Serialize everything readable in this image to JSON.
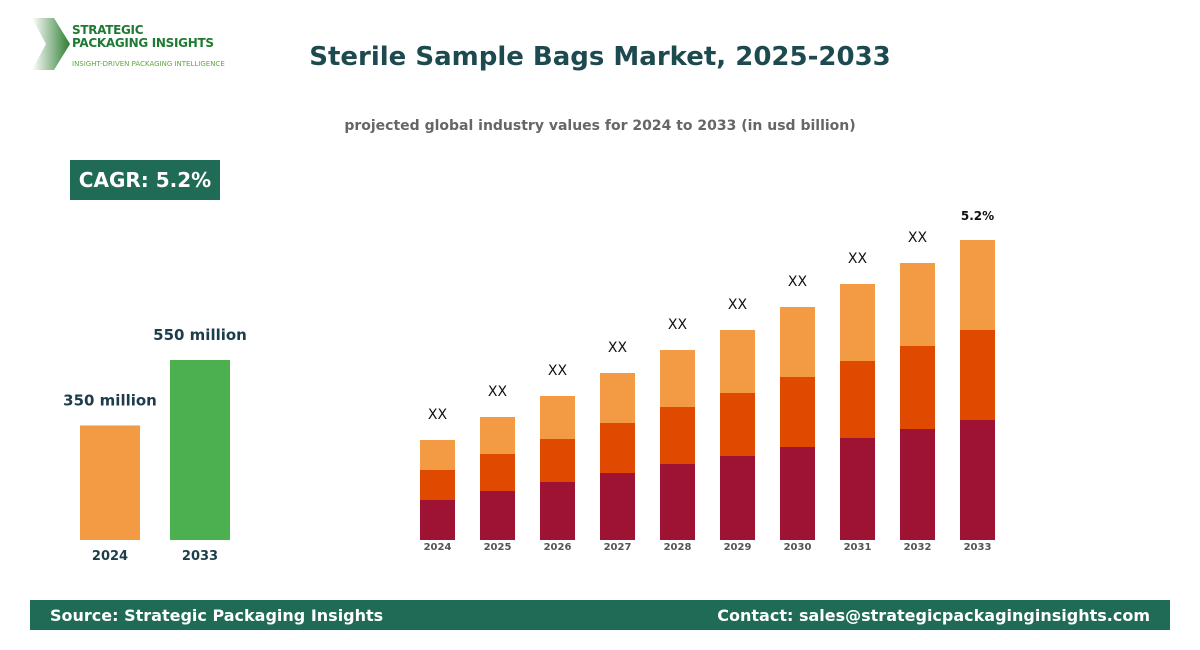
{
  "logo": {
    "line1": "STRATEGIC",
    "line2": "PACKAGING INSIGHTS",
    "tagline": "INSIGHT-DRIVEN PACKAGING INTELLIGENCE"
  },
  "header": {
    "title": "Sterile Sample Bags Market, 2025-2033",
    "subtitle": "projected global industry values for 2024 to 2033 (in usd billion)"
  },
  "cagr_badge": "CAGR: 5.2%",
  "footer": {
    "source": "Source: Strategic Packaging Insights",
    "contact": "Contact: sales@strategicpackaginginsights.com"
  },
  "chart_data": [
    {
      "type": "bar",
      "categories": [
        "2024",
        "2033"
      ],
      "values": [
        350,
        550
      ],
      "data_labels": [
        "350 million",
        "550 million"
      ],
      "colors": [
        "#f39a45",
        "#4cb050"
      ]
    },
    {
      "type": "stacked-bar",
      "categories": [
        "2024",
        "2025",
        "2026",
        "2027",
        "2028",
        "2029",
        "2030",
        "2031",
        "2032",
        "2033"
      ],
      "series": [
        {
          "values": [
            40,
            49,
            58,
            67,
            76,
            84,
            93,
            102,
            111,
            120
          ],
          "color": "#9e1233"
        },
        {
          "values": [
            30,
            37,
            43,
            50,
            57,
            63,
            70,
            77,
            83,
            90
          ],
          "color": "#df4a00"
        },
        {
          "values": [
            30,
            37,
            43,
            50,
            57,
            63,
            70,
            77,
            83,
            90
          ],
          "color": "#f39a45"
        }
      ],
      "data_labels": [
        "XX",
        "XX",
        "XX",
        "XX",
        "XX",
        "XX",
        "XX",
        "XX",
        "XX",
        "5.2%"
      ],
      "grid": false
    }
  ]
}
